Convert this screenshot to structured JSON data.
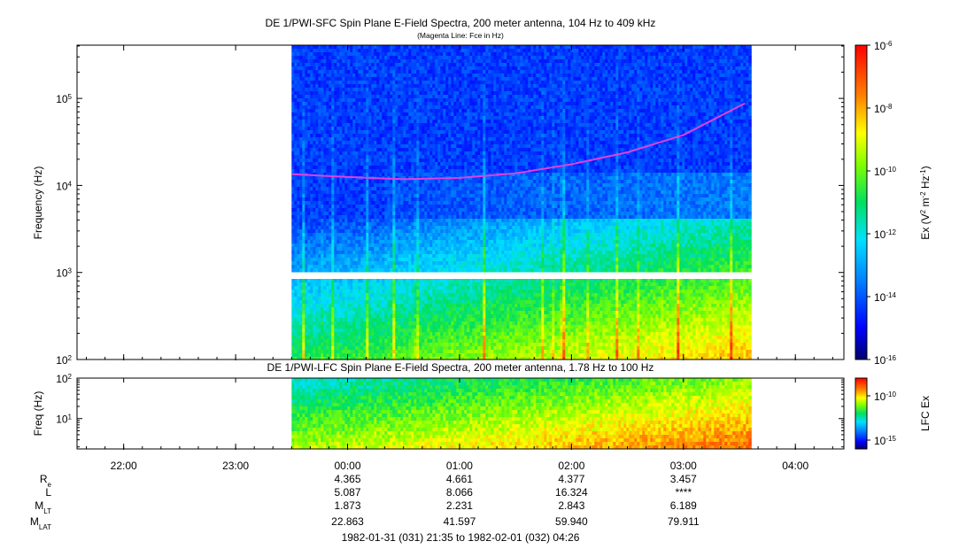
{
  "chart_data": [
    {
      "type": "heatmap",
      "title": "DE 1/PWI-SFC  Spin Plane E-Field Spectra, 200 meter antenna, 104 Hz to 409 kHz",
      "subtitle": "(Magenta Line: Fce in Hz)",
      "ylabel": "Frequency (Hz)",
      "yscale": "log",
      "ylim": [
        100,
        409000
      ],
      "y_ticks": [
        {
          "value": 100,
          "base": "10",
          "exp": "2"
        },
        {
          "value": 1000,
          "base": "10",
          "exp": "3"
        },
        {
          "value": 10000,
          "base": "10",
          "exp": "4"
        },
        {
          "value": 100000,
          "base": "10",
          "exp": "5"
        }
      ],
      "xlim": [
        "1982-01-31T21:35",
        "1982-02-01T04:26"
      ],
      "data_start": "1982-01-31T23:30",
      "data_end": "1982-02-01T03:35",
      "colorbar": {
        "label_prefix": "Ex (V",
        "label_sup1": "2",
        "label_mid": " m",
        "label_sup2": "-2",
        "label_mid2": " Hz",
        "label_sup3": "-1",
        "label_suffix": ")",
        "scale": "log",
        "range": [
          1e-16,
          1e-06
        ],
        "ticks": [
          {
            "value": 1e-06,
            "base": "10",
            "exp": "-6"
          },
          {
            "value": 1e-08,
            "base": "10",
            "exp": "-8"
          },
          {
            "value": 1e-10,
            "base": "10",
            "exp": "-10"
          },
          {
            "value": 1e-12,
            "base": "10",
            "exp": "-12"
          },
          {
            "value": 1e-14,
            "base": "10",
            "exp": "-14"
          },
          {
            "value": 1e-16,
            "base": "10",
            "exp": "-16"
          }
        ]
      },
      "fce_line": {
        "color": "#e040e0",
        "x": [
          "1982-01-31T23:30",
          "1982-02-01T00:00",
          "1982-02-01T00:30",
          "1982-02-01T01:00",
          "1982-02-01T01:30",
          "1982-02-01T02:00",
          "1982-02-01T02:30",
          "1982-02-01T03:00",
          "1982-02-01T03:33"
        ],
        "y": [
          13500,
          12500,
          11800,
          12200,
          13800,
          17500,
          24000,
          38000,
          88000
        ]
      }
    },
    {
      "type": "heatmap",
      "title": "DE 1/PWI-LFC  Spin Plane E-Field Spectra, 200 meter antenna, 1.78 Hz to 100 Hz",
      "ylabel": "Freq (Hz)",
      "yscale": "log",
      "ylim": [
        1.78,
        100
      ],
      "y_ticks": [
        {
          "value": 10,
          "base": "10",
          "exp": "1"
        },
        {
          "value": 100,
          "base": "10",
          "exp": "2"
        }
      ],
      "colorbar": {
        "label": "LFC Ex",
        "scale": "log",
        "range": [
          1e-16,
          1e-08
        ],
        "ticks": [
          {
            "value": 1e-10,
            "base": "10",
            "exp": "-10"
          },
          {
            "value": 1e-15,
            "base": "10",
            "exp": "-15"
          }
        ]
      }
    }
  ],
  "x_axis": {
    "tick_labels": [
      {
        "time": "1982-01-31T22:00",
        "label": "22:00"
      },
      {
        "time": "1982-01-31T23:00",
        "label": "23:00"
      },
      {
        "time": "1982-02-01T00:00",
        "label": "00:00"
      },
      {
        "time": "1982-02-01T01:00",
        "label": "01:00"
      },
      {
        "time": "1982-02-01T02:00",
        "label": "02:00"
      },
      {
        "time": "1982-02-01T03:00",
        "label": "03:00"
      },
      {
        "time": "1982-02-01T04:00",
        "label": "04:00"
      }
    ]
  },
  "ephemeris": [
    {
      "name": "R",
      "sub": "e",
      "values": [
        "4.365",
        "4.661",
        "4.377",
        "3.457"
      ]
    },
    {
      "name": "L",
      "sub": "",
      "values": [
        "5.087",
        "8.066",
        "16.324",
        "****"
      ]
    },
    {
      "name": "M",
      "sub": "LT",
      "values": [
        "1.873",
        "2.231",
        "2.843",
        "6.189"
      ]
    },
    {
      "name": "M",
      "sub": "LAT",
      "values": [
        "22.863",
        "41.597",
        "59.940",
        "79.911"
      ]
    }
  ],
  "ephemeris_times": [
    "1982-02-01T00:00",
    "1982-02-01T01:00",
    "1982-02-01T02:00",
    "1982-02-01T03:00"
  ],
  "time_range_label": "1982-01-31 (031) 21:35 to 1982-02-01 (032) 04:26",
  "colors": {
    "fce_line": "#e040e0",
    "background": "#ffffff",
    "axis": "#000000"
  }
}
